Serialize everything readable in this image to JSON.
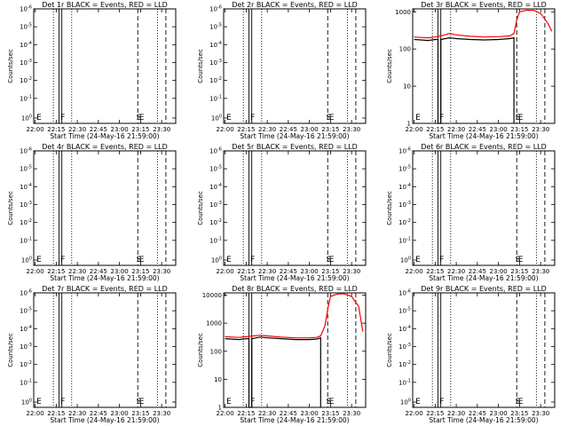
{
  "chart_data": [
    {
      "type": "line",
      "detector": "Det 1r",
      "title": "Det 1r BLACK = Events, RED = LLD",
      "xlabel": "Start Time (24-May-16 21:59:00)",
      "ylabel": "Counts/sec",
      "x_ticks": [
        "22:00",
        "22:15",
        "22:30",
        "22:45",
        "23:00",
        "23:15",
        "23:30"
      ],
      "y_scale": "log",
      "y_ticks": [
        "10^0",
        "10^-1",
        "10^-2",
        "10^-3",
        "10^-4",
        "10^-5",
        "10^-6"
      ],
      "ylim": [
        0.5,
        1.1
      ],
      "markers": {
        "dotted": [
          "22:13",
          "22:26",
          "23:27"
        ],
        "solid": [
          "22:17",
          "22:19"
        ],
        "dashed": [
          "23:13",
          "23:33"
        ]
      },
      "labels": [
        {
          "text": "E",
          "x": "22:01"
        },
        {
          "text": "F",
          "x": "22:18"
        },
        {
          "text": "S",
          "x": "23:12"
        },
        {
          "text": "E",
          "x": "23:14"
        }
      ],
      "series": []
    },
    {
      "type": "line",
      "detector": "Det 2r",
      "title": "Det 2r BLACK = Events, RED = LLD",
      "xlabel": "Start Time (24-May-16 21:59:00)",
      "ylabel": "Counts/sec",
      "x_ticks": [
        "22:00",
        "22:15",
        "22:30",
        "22:45",
        "23:00",
        "23:15",
        "23:30"
      ],
      "y_scale": "log",
      "y_ticks": [
        "10^0",
        "10^-1",
        "10^-2",
        "10^-3",
        "10^-4",
        "10^-5",
        "10^-6"
      ],
      "ylim": [
        0.5,
        1.1
      ],
      "markers": {
        "dotted": [
          "22:13",
          "22:26",
          "23:27"
        ],
        "solid": [
          "22:17",
          "22:19"
        ],
        "dashed": [
          "23:13",
          "23:33"
        ]
      },
      "labels": [
        {
          "text": "E",
          "x": "22:01"
        },
        {
          "text": "F",
          "x": "22:18"
        },
        {
          "text": "S",
          "x": "23:12"
        },
        {
          "text": "E",
          "x": "23:14"
        }
      ],
      "series": []
    },
    {
      "type": "line",
      "detector": "Det 3r",
      "title": "Det 3r BLACK = Events, RED = LLD",
      "xlabel": "Start Time (24-May-16 21:59:00)",
      "ylabel": "Counts/sec",
      "x_ticks": [
        "22:00",
        "22:15",
        "22:30",
        "22:45",
        "23:00",
        "23:15",
        "23:30"
      ],
      "y_scale": "log",
      "y_ticks": [
        "1",
        "10",
        "100",
        "1000"
      ],
      "ylim": [
        1,
        1200
      ],
      "markers": {
        "dotted": [
          "22:13",
          "22:26",
          "23:27"
        ],
        "solid": [
          "22:17",
          "22:19"
        ],
        "dashed": [
          "23:13",
          "23:33"
        ]
      },
      "labels": [
        {
          "text": "E",
          "x": "22:01"
        },
        {
          "text": "F",
          "x": "22:18"
        },
        {
          "text": "S",
          "x": "23:12"
        },
        {
          "text": "E",
          "x": "23:14"
        }
      ],
      "series": [
        {
          "color": "#ff0000",
          "x": [
            "22:00",
            "22:05",
            "22:10",
            "22:15",
            "22:20",
            "22:25",
            "22:30",
            "22:40",
            "22:50",
            "23:00",
            "23:08",
            "23:11",
            "23:13",
            "23:15",
            "23:20",
            "23:25",
            "23:30",
            "23:35",
            "23:38"
          ],
          "y": [
            210,
            205,
            200,
            210,
            230,
            260,
            240,
            220,
            210,
            215,
            225,
            260,
            600,
            1000,
            1100,
            1100,
            900,
            500,
            300
          ]
        },
        {
          "color": "#000000",
          "x": [
            "22:00",
            "22:05",
            "22:10",
            "22:15",
            "22:17",
            "22:17",
            "22:19",
            "22:19",
            "22:25",
            "22:30",
            "22:40",
            "22:50",
            "23:00",
            "23:08",
            "23:11",
            "23:11"
          ],
          "y": [
            180,
            175,
            170,
            180,
            180,
            1,
            1,
            180,
            200,
            190,
            180,
            175,
            180,
            190,
            200,
            1
          ]
        }
      ]
    },
    {
      "type": "line",
      "detector": "Det 4r",
      "title": "Det 4r BLACK = Events, RED = LLD",
      "xlabel": "Start Time (24-May-16 21:59:00)",
      "ylabel": "Counts/sec",
      "x_ticks": [
        "22:00",
        "22:15",
        "22:30",
        "22:45",
        "23:00",
        "23:15",
        "23:30"
      ],
      "y_scale": "log",
      "y_ticks": [
        "10^0",
        "10^-1",
        "10^-2",
        "10^-3",
        "10^-4",
        "10^-5",
        "10^-6"
      ],
      "ylim": [
        0.5,
        1.1
      ],
      "markers": {
        "dotted": [
          "22:13",
          "22:26",
          "23:27"
        ],
        "solid": [
          "22:17",
          "22:19"
        ],
        "dashed": [
          "23:13",
          "23:33"
        ]
      },
      "labels": [
        {
          "text": "E",
          "x": "22:01"
        },
        {
          "text": "F",
          "x": "22:18"
        },
        {
          "text": "S",
          "x": "23:12"
        },
        {
          "text": "E",
          "x": "23:14"
        }
      ],
      "series": []
    },
    {
      "type": "line",
      "detector": "Det 5r",
      "title": "Det 5r BLACK = Events, RED = LLD",
      "xlabel": "Start Time (24-May-16 21:59:00)",
      "ylabel": "Counts/sec",
      "x_ticks": [
        "22:00",
        "22:15",
        "22:30",
        "22:45",
        "23:00",
        "23:15",
        "23:30"
      ],
      "y_scale": "log",
      "y_ticks": [
        "10^0",
        "10^-1",
        "10^-2",
        "10^-3",
        "10^-4",
        "10^-5",
        "10^-6"
      ],
      "ylim": [
        0.5,
        1.1
      ],
      "markers": {
        "dotted": [
          "22:13",
          "22:26",
          "23:27"
        ],
        "solid": [
          "22:17",
          "22:19"
        ],
        "dashed": [
          "23:13",
          "23:33"
        ]
      },
      "labels": [
        {
          "text": "E",
          "x": "22:01"
        },
        {
          "text": "F",
          "x": "22:18"
        },
        {
          "text": "S",
          "x": "23:12"
        },
        {
          "text": "E",
          "x": "23:14"
        }
      ],
      "series": []
    },
    {
      "type": "line",
      "detector": "Det 6r",
      "title": "Det 6r BLACK = Events, RED = LLD",
      "xlabel": "Start Time (24-May-16 21:59:00)",
      "ylabel": "Counts/sec",
      "x_ticks": [
        "22:00",
        "22:15",
        "22:30",
        "22:45",
        "23:00",
        "23:15",
        "23:30"
      ],
      "y_scale": "log",
      "y_ticks": [
        "10^0",
        "10^-1",
        "10^-2",
        "10^-3",
        "10^-4",
        "10^-5",
        "10^-6"
      ],
      "ylim": [
        0.5,
        1.1
      ],
      "markers": {
        "dotted": [
          "22:13",
          "22:26",
          "23:27"
        ],
        "solid": [
          "22:17",
          "22:19"
        ],
        "dashed": [
          "23:13",
          "23:33"
        ]
      },
      "labels": [
        {
          "text": "E",
          "x": "22:01"
        },
        {
          "text": "F",
          "x": "22:18"
        },
        {
          "text": "S",
          "x": "23:12"
        },
        {
          "text": "E",
          "x": "23:14"
        }
      ],
      "series": []
    },
    {
      "type": "line",
      "detector": "Det 7r",
      "title": "Det 7r BLACK = Events, RED = LLD",
      "xlabel": "Start Time (24-May-16 21:59:00)",
      "ylabel": "Counts/sec",
      "x_ticks": [
        "22:00",
        "22:15",
        "22:30",
        "22:45",
        "23:00",
        "23:15",
        "23:30"
      ],
      "y_scale": "log",
      "y_ticks": [
        "10^0",
        "10^-1",
        "10^-2",
        "10^-3",
        "10^-4",
        "10^-5",
        "10^-6"
      ],
      "ylim": [
        0.5,
        1.1
      ],
      "markers": {
        "dotted": [
          "22:13",
          "22:26",
          "23:27"
        ],
        "solid": [
          "22:17",
          "22:19"
        ],
        "dashed": [
          "23:13",
          "23:33"
        ]
      },
      "labels": [
        {
          "text": "E",
          "x": "22:01"
        },
        {
          "text": "F",
          "x": "22:18"
        },
        {
          "text": "S",
          "x": "23:12"
        },
        {
          "text": "E",
          "x": "23:14"
        }
      ],
      "series": []
    },
    {
      "type": "line",
      "detector": "Det 8r",
      "title": "Det 8r BLACK = Events, RED = LLD",
      "xlabel": "Start Time (24-May-16 21:59:00)",
      "ylabel": "Counts/sec",
      "x_ticks": [
        "22:00",
        "22:15",
        "22:30",
        "22:45",
        "23:00",
        "23:15",
        "23:30"
      ],
      "y_scale": "log",
      "y_ticks": [
        "1",
        "10",
        "100",
        "1000",
        "10000"
      ],
      "ylim": [
        1,
        12000
      ],
      "markers": {
        "dotted": [
          "22:13",
          "22:26",
          "23:27"
        ],
        "solid": [
          "22:17",
          "22:19"
        ],
        "dashed": [
          "23:13",
          "23:33"
        ]
      },
      "labels": [
        {
          "text": "E",
          "x": "22:01"
        },
        {
          "text": "F",
          "x": "22:18"
        },
        {
          "text": "S",
          "x": "23:12"
        },
        {
          "text": "E",
          "x": "23:14"
        }
      ],
      "series": [
        {
          "color": "#ff0000",
          "x": [
            "22:00",
            "22:05",
            "22:10",
            "22:15",
            "22:20",
            "22:25",
            "22:30",
            "22:40",
            "22:50",
            "23:00",
            "23:05",
            "23:08",
            "23:11",
            "23:13",
            "23:15",
            "23:20",
            "23:25",
            "23:30",
            "23:35",
            "23:38"
          ],
          "y": [
            330,
            320,
            310,
            330,
            350,
            370,
            350,
            320,
            300,
            300,
            310,
            350,
            800,
            3000,
            9000,
            11000,
            11000,
            9000,
            4000,
            500
          ]
        },
        {
          "color": "#000000",
          "x": [
            "22:00",
            "22:05",
            "22:10",
            "22:15",
            "22:17",
            "22:17",
            "22:19",
            "22:19",
            "22:25",
            "22:30",
            "22:40",
            "22:50",
            "23:00",
            "23:05",
            "23:08",
            "23:08"
          ],
          "y": [
            280,
            270,
            260,
            280,
            280,
            1,
            1,
            280,
            320,
            300,
            280,
            260,
            260,
            270,
            300,
            1
          ]
        }
      ]
    },
    {
      "type": "line",
      "detector": "Det 9r",
      "title": "Det 9r BLACK = Events, RED = LLD",
      "xlabel": "Start Time (24-May-16 21:59:00)",
      "ylabel": "Counts/sec",
      "x_ticks": [
        "22:00",
        "22:15",
        "22:30",
        "22:45",
        "23:00",
        "23:15",
        "23:30"
      ],
      "y_scale": "log",
      "y_ticks": [
        "10^0",
        "10^-1",
        "10^-2",
        "10^-3",
        "10^-4",
        "10^-5",
        "10^-6"
      ],
      "ylim": [
        0.5,
        1.1
      ],
      "markers": {
        "dotted": [
          "22:13",
          "22:26",
          "23:27"
        ],
        "solid": [
          "22:17",
          "22:19"
        ],
        "dashed": [
          "23:13",
          "23:33"
        ]
      },
      "labels": [
        {
          "text": "E",
          "x": "22:01"
        },
        {
          "text": "F",
          "x": "22:18"
        },
        {
          "text": "S",
          "x": "23:12"
        },
        {
          "text": "E",
          "x": "23:14"
        }
      ],
      "series": []
    }
  ]
}
